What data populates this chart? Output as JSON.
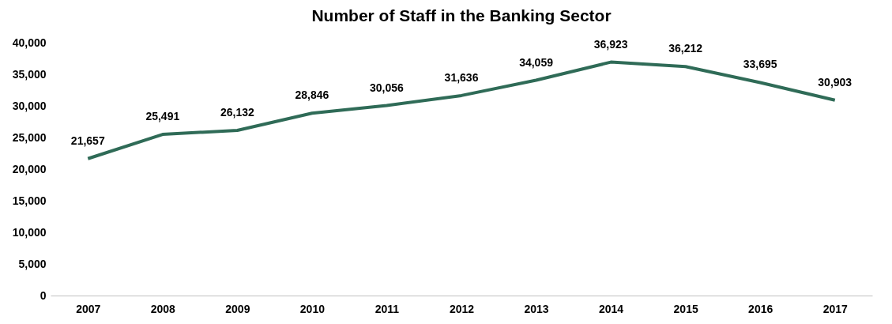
{
  "chart_data": {
    "type": "line",
    "title": "Number of Staff in the Banking Sector",
    "categories": [
      "2007",
      "2008",
      "2009",
      "2010",
      "2011",
      "2012",
      "2013",
      "2014",
      "2015",
      "2016",
      "2017"
    ],
    "series": [
      {
        "color": "#2f6b57",
        "values": [
          21657,
          25491,
          26132,
          28846,
          30056,
          31636,
          34059,
          36923,
          36212,
          33695,
          30903
        ],
        "value_labels": [
          "21,657",
          "25,491",
          "26,132",
          "28,846",
          "30,056",
          "31,636",
          "34,059",
          "36,923",
          "36,212",
          "33,695",
          "30,903"
        ]
      }
    ],
    "ylim": [
      0,
      40000
    ],
    "yticks": [
      0,
      {
        "value": 5000,
        "label": "5,000"
      },
      {
        "value": 10000,
        "label": "10,000"
      },
      {
        "value": 15000,
        "label": "15,000"
      },
      {
        "value": 20000,
        "label": "20,000"
      },
      {
        "value": 25000,
        "label": "25,000"
      },
      {
        "value": 30000,
        "label": "30,000"
      },
      {
        "value": 35000,
        "label": "35,000"
      },
      {
        "value": 40000,
        "label": "40,000"
      }
    ],
    "grid": false,
    "marker": "none",
    "line_style": "solid"
  }
}
